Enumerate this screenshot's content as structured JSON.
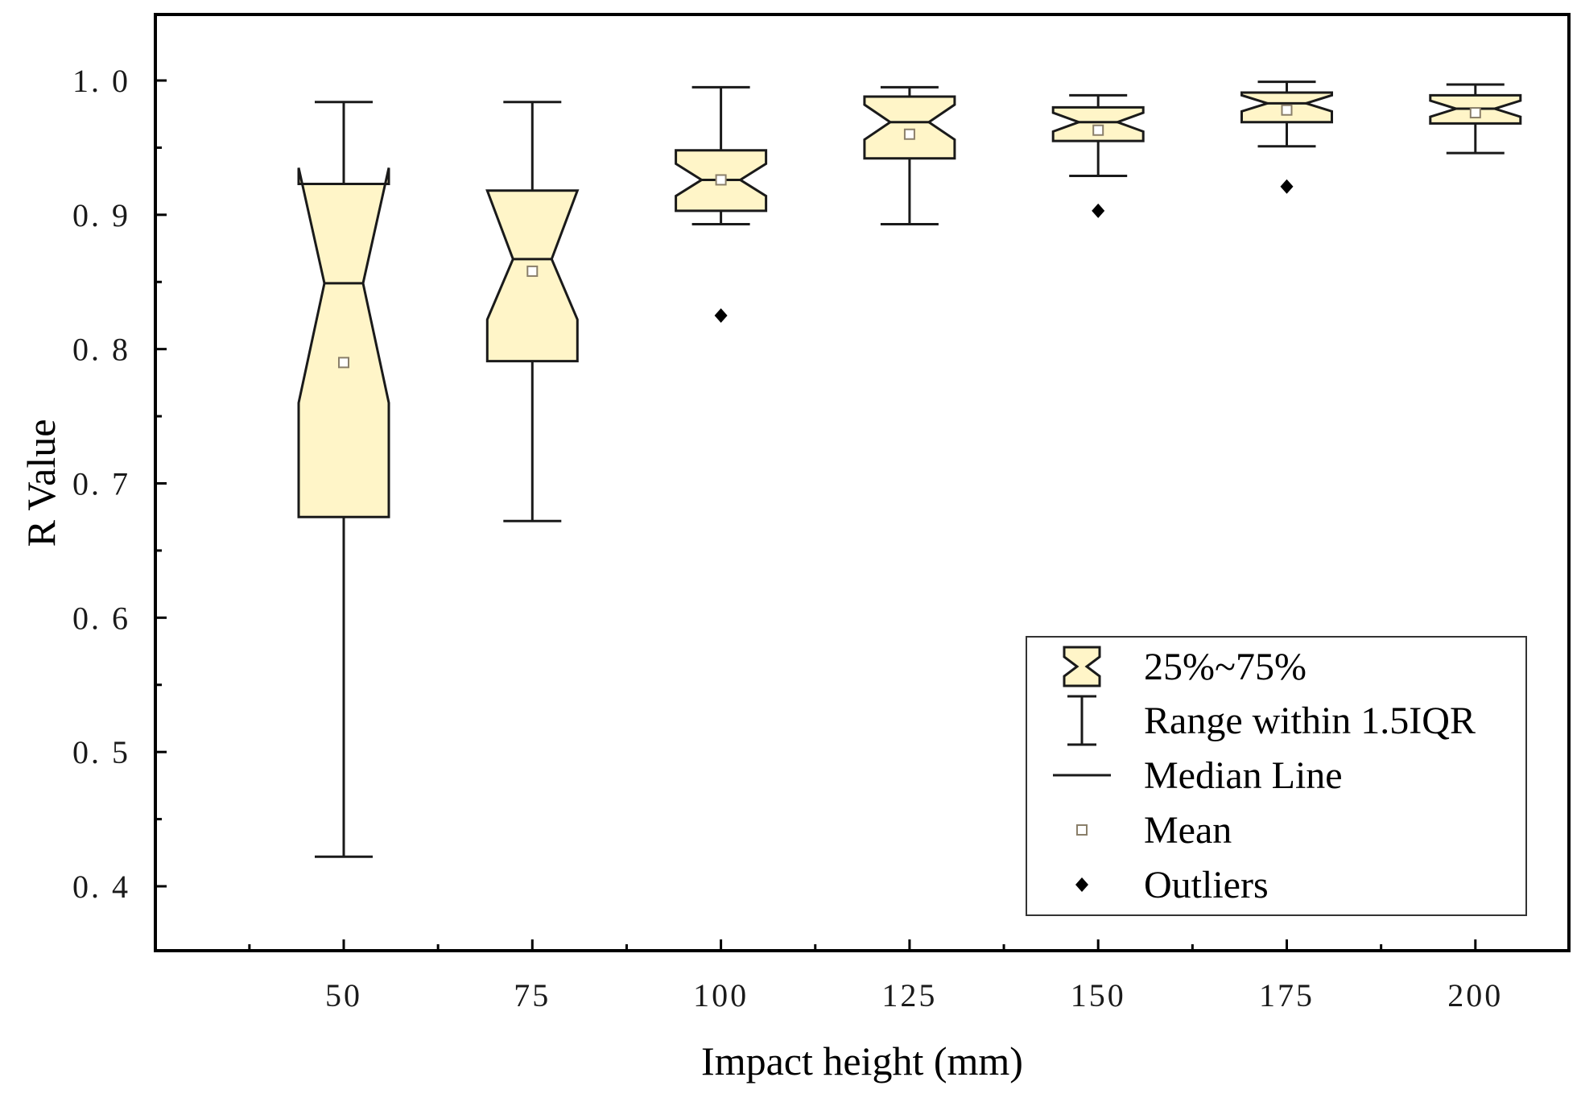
{
  "chart_data": {
    "type": "box",
    "xlabel": "Impact height (mm)",
    "ylabel": "R Value",
    "ylim": [
      0.35,
      1.05
    ],
    "yticks": [
      0.4,
      0.5,
      0.6,
      0.7,
      0.8,
      0.9,
      1.0
    ],
    "ytick_labels": [
      "0. 4",
      "0. 5",
      "0. 6",
      "0. 7",
      "0. 8",
      "0. 9",
      "1. 0"
    ],
    "categories": [
      "50",
      "75",
      "100",
      "125",
      "150",
      "175",
      "200"
    ],
    "boxes": [
      {
        "category": "50",
        "whisker_low": 0.422,
        "q1": 0.675,
        "median": 0.849,
        "q3": 0.923,
        "whisker_high": 0.984,
        "mean": 0.79,
        "notch_low": 0.76,
        "notch_high": 0.935,
        "outliers": []
      },
      {
        "category": "75",
        "whisker_low": 0.672,
        "q1": 0.791,
        "median": 0.867,
        "q3": 0.918,
        "whisker_high": 0.984,
        "mean": 0.858,
        "notch_low": 0.822,
        "notch_high": 0.918,
        "outliers": []
      },
      {
        "category": "100",
        "whisker_low": 0.893,
        "q1": 0.903,
        "median": 0.926,
        "q3": 0.948,
        "whisker_high": 0.995,
        "mean": 0.926,
        "notch_low": 0.914,
        "notch_high": 0.938,
        "outliers": [
          0.825
        ]
      },
      {
        "category": "125",
        "whisker_low": 0.893,
        "q1": 0.942,
        "median": 0.969,
        "q3": 0.988,
        "whisker_high": 0.995,
        "mean": 0.96,
        "notch_low": 0.956,
        "notch_high": 0.982,
        "outliers": []
      },
      {
        "category": "150",
        "whisker_low": 0.929,
        "q1": 0.955,
        "median": 0.969,
        "q3": 0.98,
        "whisker_high": 0.989,
        "mean": 0.963,
        "notch_low": 0.962,
        "notch_high": 0.976,
        "outliers": [
          0.903
        ]
      },
      {
        "category": "175",
        "whisker_low": 0.951,
        "q1": 0.969,
        "median": 0.983,
        "q3": 0.991,
        "whisker_high": 0.999,
        "mean": 0.978,
        "notch_low": 0.977,
        "notch_high": 0.989,
        "outliers": [
          0.921
        ]
      },
      {
        "category": "200",
        "whisker_low": 0.946,
        "q1": 0.968,
        "median": 0.979,
        "q3": 0.989,
        "whisker_high": 0.997,
        "mean": 0.976,
        "notch_low": 0.973,
        "notch_high": 0.985,
        "outliers": []
      }
    ],
    "legend": {
      "placement": "bottom-right",
      "items": [
        {
          "label": "25%~75%",
          "kind": "box"
        },
        {
          "label": "Range within 1.5IQR",
          "kind": "whisker"
        },
        {
          "label": "Median Line",
          "kind": "line"
        },
        {
          "label": "Mean",
          "kind": "mean"
        },
        {
          "label": "Outliers",
          "kind": "outlier"
        }
      ]
    },
    "colors": {
      "box_fill": "#fff5c8",
      "stroke": "#1a1a1a",
      "mean_marker": "#8a7f6a",
      "outlier": "#000000"
    }
  }
}
